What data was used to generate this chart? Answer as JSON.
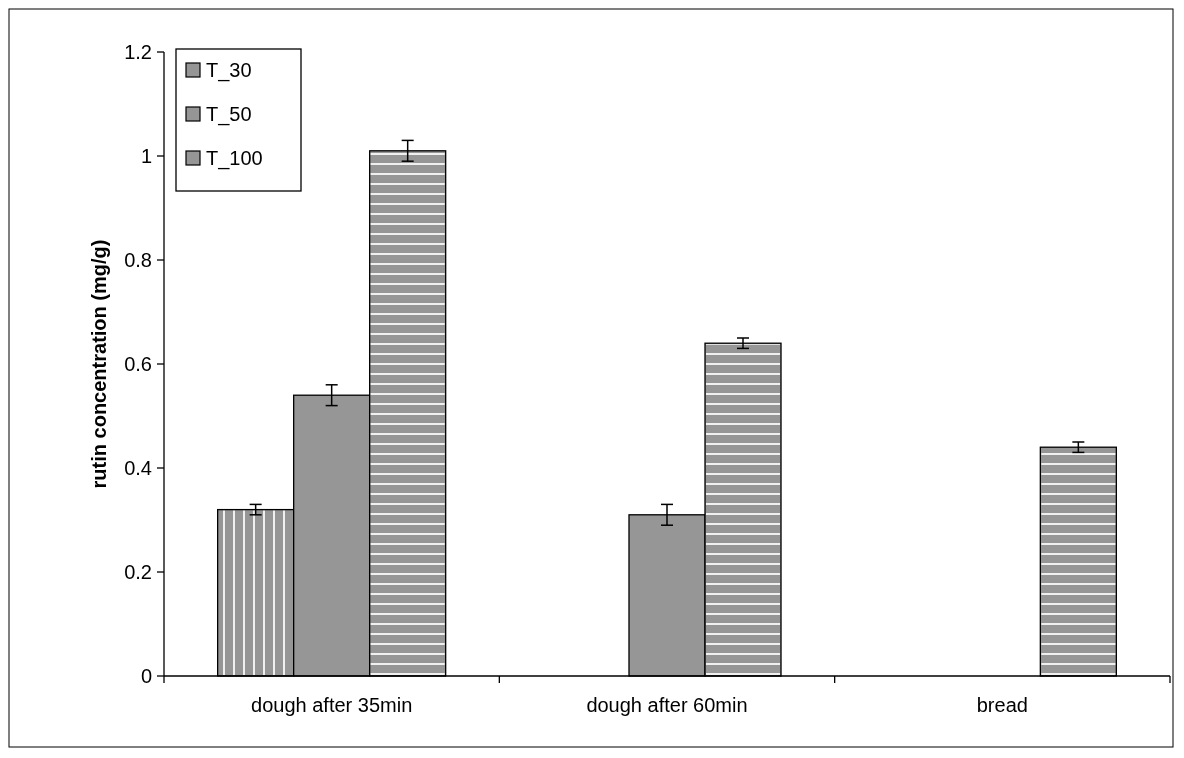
{
  "chart_data": {
    "type": "bar",
    "ylabel": "rutin concentration (mg/g)",
    "categories": [
      "dough after 35min",
      "dough after 60min",
      "bread"
    ],
    "series": [
      {
        "name": "T_30",
        "color": "#969696",
        "values": [
          0.32,
          0,
          0
        ],
        "errors": [
          0.01,
          null,
          null
        ]
      },
      {
        "name": "T_50",
        "color": "#969696",
        "values": [
          0.54,
          0.31,
          0
        ],
        "errors": [
          0.02,
          0.02,
          null
        ]
      },
      {
        "name": "T_100",
        "color": "#969696",
        "values": [
          1.01,
          0.64,
          0.44
        ],
        "errors": [
          0.02,
          0.01,
          0.01
        ]
      }
    ],
    "ylim": [
      0,
      1.2
    ],
    "yticks": [
      0,
      0.2,
      0.4,
      0.6,
      0.8,
      1,
      1.2
    ],
    "grid": false,
    "legend": "top left"
  }
}
